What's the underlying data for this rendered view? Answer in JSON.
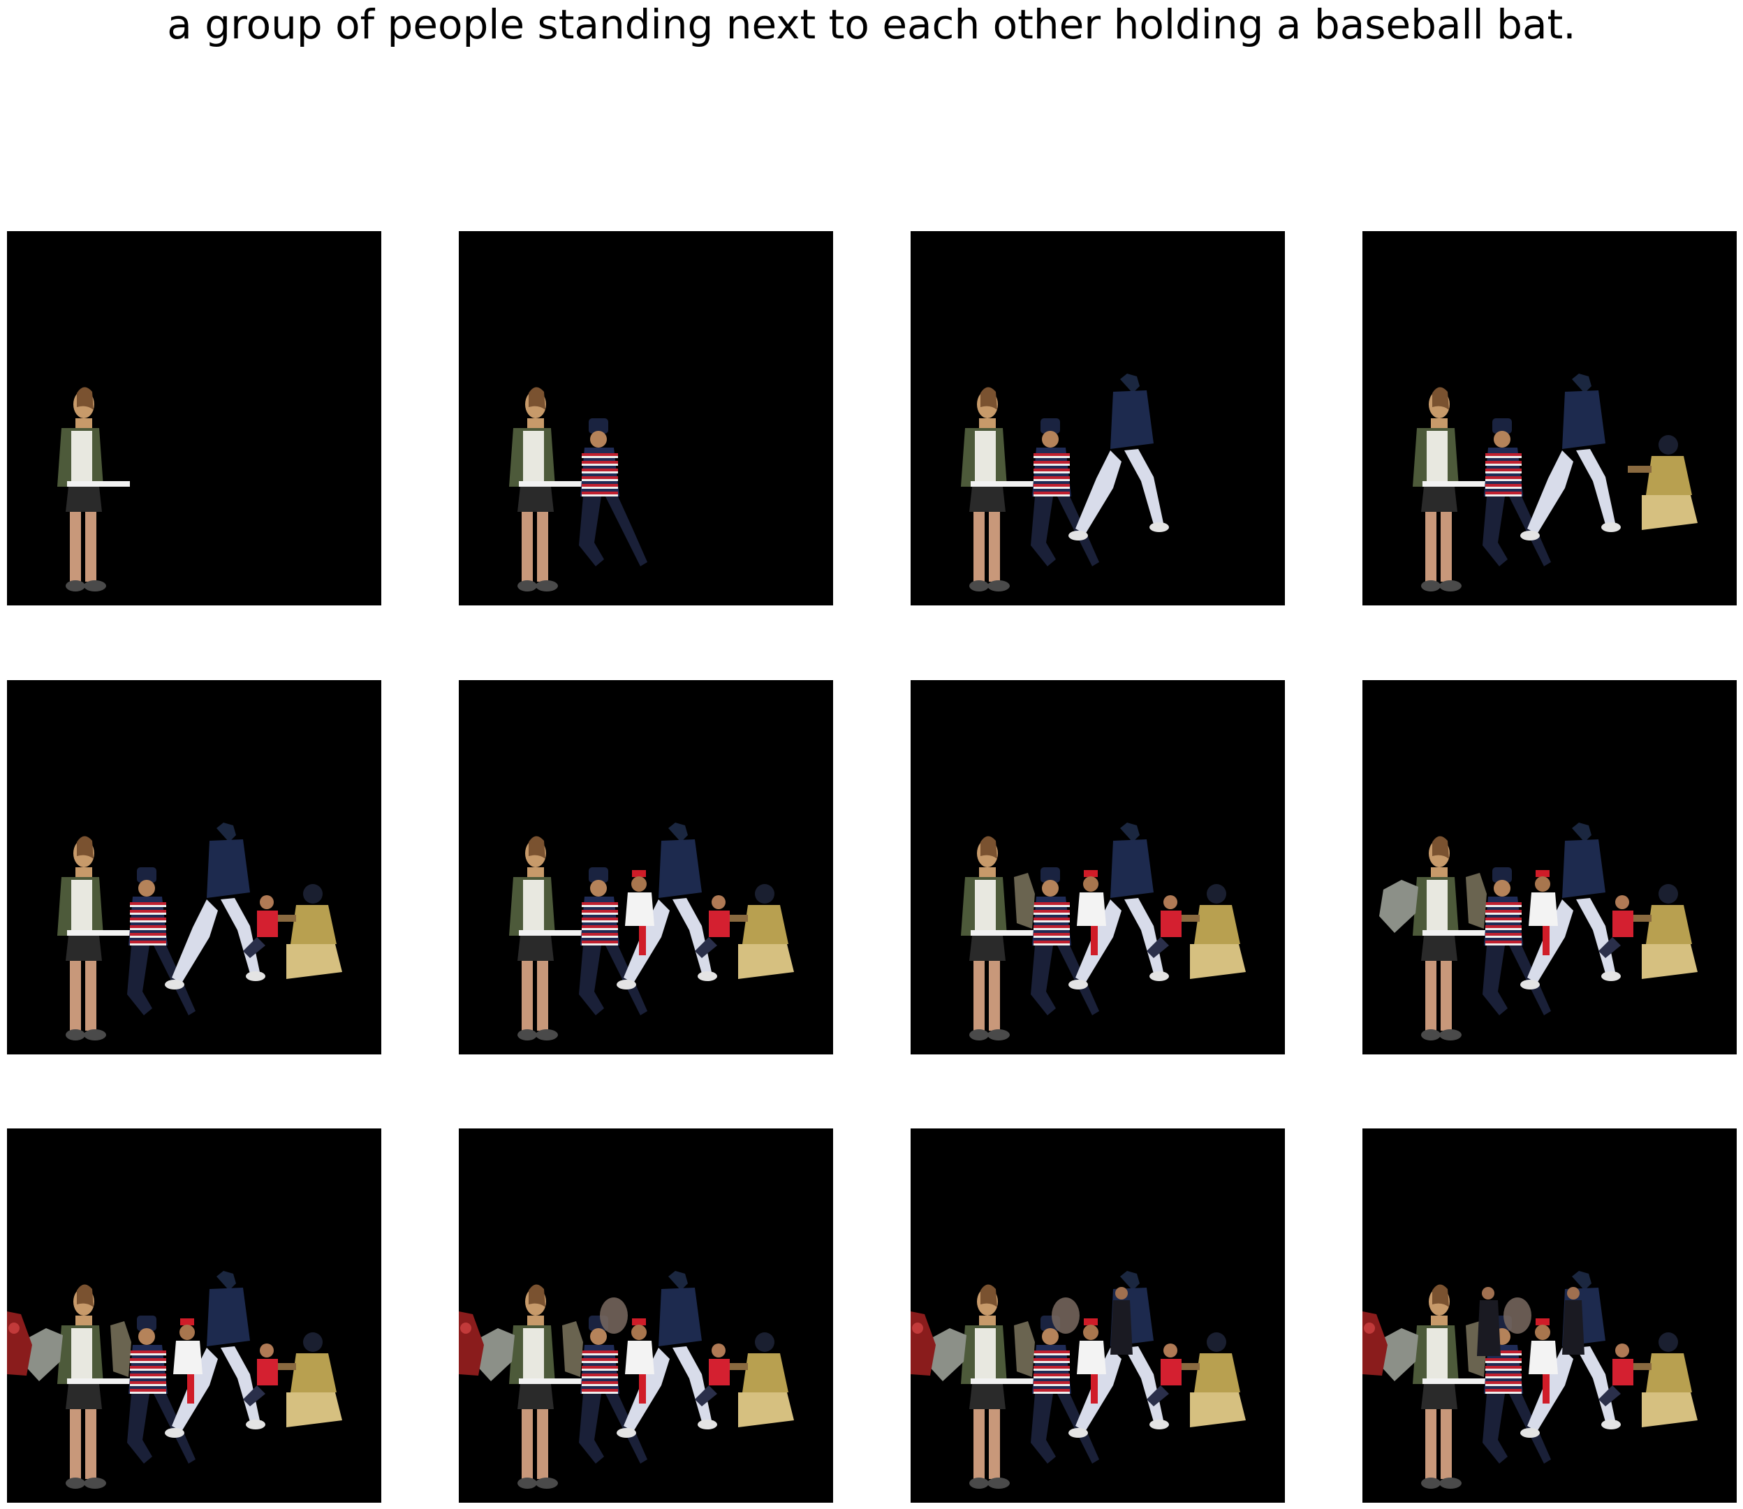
{
  "figure": {
    "caption": "a group of people standing next to each other holding a baseball bat.",
    "background_color": "#000000",
    "panel_count": 12,
    "grid": {
      "rows": 3,
      "columns": 4
    }
  },
  "panels": [
    {
      "figures": [
        "woman"
      ]
    },
    {
      "figures": [
        "woman",
        "striped-player"
      ]
    },
    {
      "figures": [
        "woman",
        "striped-player",
        "batter"
      ]
    },
    {
      "figures": [
        "woman",
        "striped-player",
        "batter",
        "catcher"
      ]
    },
    {
      "figures": [
        "woman",
        "striped-player",
        "batter",
        "catcher",
        "red-player"
      ]
    },
    {
      "figures": [
        "woman",
        "striped-player",
        "batter",
        "catcher",
        "red-player",
        "white-player"
      ]
    },
    {
      "figures": [
        "woman",
        "striped-player",
        "batter",
        "catcher",
        "red-player",
        "white-player",
        "partial-figure"
      ]
    },
    {
      "figures": [
        "woman",
        "striped-player",
        "batter",
        "catcher",
        "red-player",
        "white-player",
        "partial-figure",
        "grey-blob"
      ]
    },
    {
      "figures": [
        "woman",
        "striped-player",
        "batter",
        "catcher",
        "red-player",
        "white-player",
        "partial-figure",
        "grey-blob",
        "left-edge-figure"
      ]
    },
    {
      "figures": [
        "woman",
        "striped-player",
        "batter",
        "catcher",
        "red-player",
        "white-player",
        "partial-figure",
        "grey-blob",
        "left-edge-figure",
        "blurry-head"
      ]
    },
    {
      "figures": [
        "woman",
        "striped-player",
        "batter",
        "catcher",
        "red-player",
        "white-player",
        "partial-figure",
        "grey-blob",
        "left-edge-figure",
        "blurry-head",
        "dark-standing-figure"
      ]
    },
    {
      "figures": [
        "woman",
        "striped-player",
        "batter",
        "catcher",
        "red-player",
        "white-player",
        "partial-figure",
        "grey-blob",
        "left-edge-figure",
        "blurry-head",
        "dark-standing-figure",
        "dark-left-figure"
      ]
    }
  ]
}
